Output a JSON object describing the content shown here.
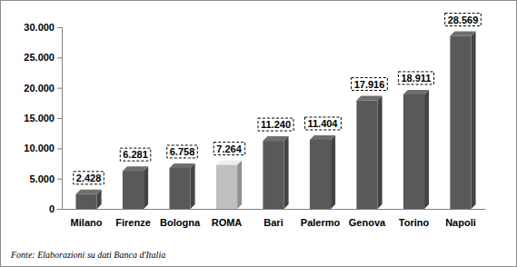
{
  "chart_data": {
    "type": "bar",
    "categories": [
      "Milano",
      "Firenze",
      "Bologna",
      "ROMA",
      "Bari",
      "Palermo",
      "Genova",
      "Torino",
      "Napoli"
    ],
    "values": [
      2428,
      6281,
      6758,
      7264,
      11240,
      11404,
      17916,
      18911,
      28569
    ],
    "value_labels": [
      "2.428",
      "6.281",
      "6.758",
      "7.264",
      "11.240",
      "11.404",
      "17.916",
      "18.911",
      "28.569"
    ],
    "colors": [
      "#595959",
      "#595959",
      "#595959",
      "#bfbfbf",
      "#595959",
      "#595959",
      "#595959",
      "#595959",
      "#595959"
    ],
    "ylim": [
      0,
      30000
    ],
    "yticks": [
      0,
      {
        "value": 5000,
        "label": "5.000"
      },
      {
        "value": 10000,
        "label": "10.000"
      },
      {
        "value": 15000,
        "label": "15.000"
      },
      {
        "value": 20000,
        "label": "20.000"
      },
      {
        "value": 25000,
        "label": "25.000"
      },
      {
        "value": 30000,
        "label": "30.000"
      }
    ],
    "grid": false,
    "data_labels": true,
    "annotations": [
      "Fonte: Elaborazioni su dati Banca d'Italia"
    ]
  }
}
